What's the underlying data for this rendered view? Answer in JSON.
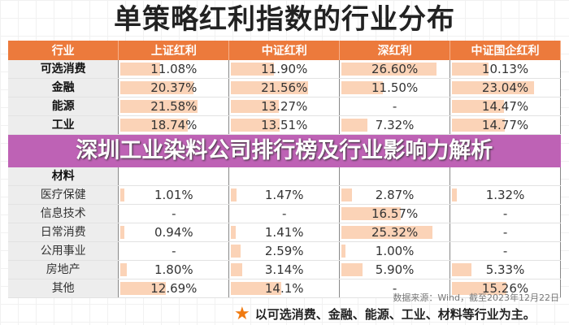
{
  "title": "单策略红利指数的行业分布",
  "headers": [
    "行业",
    "上证红利",
    "中证红利",
    "深红利",
    "中证国企红利"
  ],
  "rows": [
    {
      "label": "可选消费",
      "bold": true,
      "values": [
        "11.08%",
        "11.90%",
        "26.60%",
        "10.13%"
      ]
    },
    {
      "label": "金融",
      "bold": true,
      "values": [
        "20.37%",
        "21.56%",
        "11.50%",
        "23.04%"
      ]
    },
    {
      "label": "能源",
      "bold": true,
      "values": [
        "21.58%",
        "13.27%",
        "-",
        "14.47%"
      ]
    },
    {
      "label": "工业",
      "bold": true,
      "values": [
        "18.74%",
        "13.51%",
        "7.32%",
        "14.77%"
      ]
    },
    {
      "label": "材料",
      "bold": true,
      "values": [
        "",
        "",
        "",
        ""
      ]
    },
    {
      "label": "医疗保健",
      "bold": false,
      "values": [
        "1.01%",
        "1.47%",
        "2.87%",
        "1.32%"
      ]
    },
    {
      "label": "信息技术",
      "bold": false,
      "values": [
        "-",
        "-",
        "16.57%",
        "-"
      ]
    },
    {
      "label": "日常消费",
      "bold": false,
      "values": [
        "0.94%",
        "1.41%",
        "25.32%",
        "-"
      ]
    },
    {
      "label": "公用事业",
      "bold": false,
      "values": [
        "-",
        "2.59%",
        "1.00%",
        "-"
      ]
    },
    {
      "label": "房地产",
      "bold": false,
      "values": [
        "1.80%",
        "3.14%",
        "5.90%",
        "5.33%"
      ]
    },
    {
      "label": "其他",
      "bold": false,
      "values": [
        "12.69%",
        "14.1%",
        "-",
        "15.26%"
      ]
    }
  ],
  "banner": "深圳工业染料公司排行榜及行业影响力解析",
  "source": "数据来源：Wind，截至2023年12月22日",
  "footer": "以可选消费、金融、能源、工业、材料等行业为主。",
  "colors": {
    "header": "#ec7a3c",
    "bar": "#fbd3b7",
    "banner": "#b955af",
    "star": "#f07a10"
  }
}
